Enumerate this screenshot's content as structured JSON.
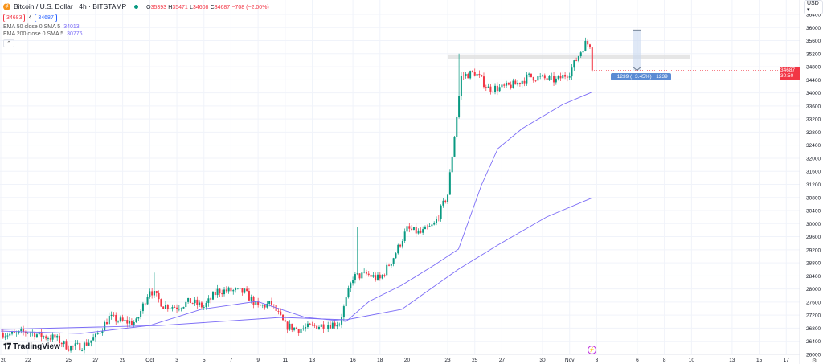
{
  "header": {
    "symbol_title": "Bitcoin / U.S. Dollar · 4h · BITSTAMP",
    "logo_glyph": "₿",
    "open_label": "O",
    "open": "35393",
    "high_label": "H",
    "high": "35471",
    "low_label": "L",
    "low": "34608",
    "close_label": "C",
    "close": "34687",
    "change": "−708 (−2.00%)",
    "sell_price": "34683",
    "spread": "4",
    "buy_price": "34687",
    "ema50_label": "EMA 50 close 0 SMA 5",
    "ema50_value": "34013",
    "ema200_label": "EMA 200 close 0 SMA 5",
    "ema200_value": "30776",
    "collapse_glyph": "⌃"
  },
  "price_axis": {
    "currency": "USD ▾",
    "last_price": "34687",
    "countdown": "30:50"
  },
  "measure_label": "−1239 (−3.45%) −1239",
  "branding": "TradingView",
  "colors": {
    "up": "#089981",
    "down": "#f23645",
    "ema": "#7b6cf6",
    "grid": "#f0f3fa"
  },
  "chart_data": {
    "type": "candlestick",
    "title": "Bitcoin / U.S. Dollar · 4h · BITSTAMP",
    "ylim": [
      26000,
      36400
    ],
    "y_ticks": [
      36400,
      36000,
      35600,
      35200,
      34800,
      34400,
      34000,
      33600,
      33200,
      32800,
      32400,
      32000,
      31600,
      31200,
      30800,
      30400,
      30000,
      29600,
      29200,
      28800,
      28400,
      28000,
      27600,
      27200,
      26800,
      26400,
      26000
    ],
    "x_ticks": [
      {
        "label": "20",
        "day": 0
      },
      {
        "label": "22",
        "day": 2
      },
      {
        "label": "25",
        "day": 5
      },
      {
        "label": "27",
        "day": 7
      },
      {
        "label": "29",
        "day": 9
      },
      {
        "label": "Oct",
        "day": 11
      },
      {
        "label": "3",
        "day": 13
      },
      {
        "label": "5",
        "day": 15
      },
      {
        "label": "7",
        "day": 17
      },
      {
        "label": "9",
        "day": 19
      },
      {
        "label": "11",
        "day": 21
      },
      {
        "label": "13",
        "day": 23
      },
      {
        "label": "16",
        "day": 26
      },
      {
        "label": "18",
        "day": 28
      },
      {
        "label": "20",
        "day": 30
      },
      {
        "label": "23",
        "day": 33
      },
      {
        "label": "25",
        "day": 35
      },
      {
        "label": "27",
        "day": 37
      },
      {
        "label": "30",
        "day": 40
      },
      {
        "label": "Nov",
        "day": 42
      },
      {
        "label": "3",
        "day": 44
      },
      {
        "label": "6",
        "day": 47
      },
      {
        "label": "8",
        "day": 49
      },
      {
        "label": "10",
        "day": 51
      },
      {
        "label": "13",
        "day": 54
      },
      {
        "label": "15",
        "day": 56
      },
      {
        "label": "17",
        "day": 58
      }
    ],
    "x_start": "Sep 20",
    "daily_close_approx": [
      26640,
      26600,
      26700,
      26560,
      26500,
      26220,
      26250,
      26520,
      27130,
      27000,
      26980,
      28000,
      27500,
      27450,
      27620,
      27450,
      27940,
      27950,
      27900,
      27450,
      27550,
      26880,
      26760,
      26850,
      26900,
      26960,
      28360,
      28450,
      28300,
      28975,
      29830,
      29710,
      29960,
      30900,
      34500,
      34630,
      34140,
      34150,
      34260,
      34500,
      34450,
      34380,
      34630,
      35400
    ],
    "last_close": 34687,
    "spikes": [
      {
        "day": 11.3,
        "high": 28500
      },
      {
        "day": 26.4,
        "high": 29900
      },
      {
        "day": 33.9,
        "high": 35200
      },
      {
        "day": 35.2,
        "high": 35100
      },
      {
        "day": 43.0,
        "high": 36000
      }
    ],
    "series": [
      {
        "name": "EMA 50",
        "points": [
          [
            0,
            26711
          ],
          [
            5.9,
            26637
          ],
          [
            11,
            26883
          ],
          [
            14.8,
            27375
          ],
          [
            18.9,
            27621
          ],
          [
            22.5,
            27130
          ],
          [
            25.5,
            27007
          ],
          [
            27.2,
            27621
          ],
          [
            29.6,
            28113
          ],
          [
            32,
            28728
          ],
          [
            33.8,
            29220
          ],
          [
            35.5,
            31187
          ],
          [
            36.7,
            32293
          ],
          [
            38.5,
            32908
          ],
          [
            41.5,
            33646
          ],
          [
            43.6,
            34013
          ]
        ]
      },
      {
        "name": "EMA 200",
        "points": [
          [
            0,
            26761
          ],
          [
            11.8,
            26883
          ],
          [
            20.7,
            27130
          ],
          [
            25.5,
            27056
          ],
          [
            29.6,
            27375
          ],
          [
            33.8,
            28605
          ],
          [
            36.7,
            29343
          ],
          [
            40.3,
            30203
          ],
          [
            43.6,
            30776
          ]
        ]
      }
    ],
    "annotations": {
      "resistance_zone": 35100,
      "measure_from": 35926,
      "measure_to": 34687
    }
  }
}
